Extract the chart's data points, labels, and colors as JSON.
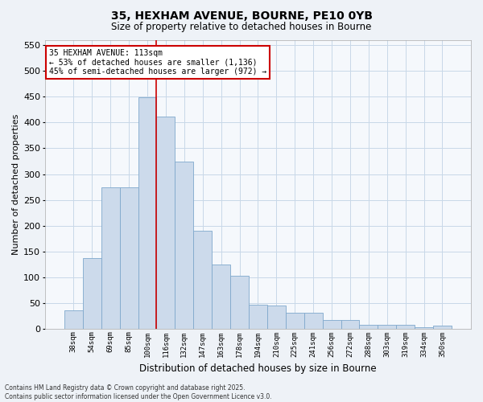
{
  "title_line1": "35, HEXHAM AVENUE, BOURNE, PE10 0YB",
  "title_line2": "Size of property relative to detached houses in Bourne",
  "xlabel": "Distribution of detached houses by size in Bourne",
  "ylabel": "Number of detached properties",
  "categories": [
    "38sqm",
    "54sqm",
    "69sqm",
    "85sqm",
    "100sqm",
    "116sqm",
    "132sqm",
    "147sqm",
    "163sqm",
    "178sqm",
    "194sqm",
    "210sqm",
    "225sqm",
    "241sqm",
    "256sqm",
    "272sqm",
    "288sqm",
    "303sqm",
    "319sqm",
    "334sqm",
    "350sqm"
  ],
  "values": [
    35,
    137,
    275,
    275,
    449,
    411,
    325,
    190,
    125,
    103,
    47,
    45,
    30,
    30,
    16,
    16,
    8,
    8,
    8,
    3,
    6
  ],
  "bar_color": "#ccdaeb",
  "bar_edge_color": "#7fa8cc",
  "grid_color": "#c8d8e8",
  "annotation_text_line1": "35 HEXHAM AVENUE: 113sqm",
  "annotation_text_line2": "← 53% of detached houses are smaller (1,136)",
  "annotation_text_line3": "45% of semi-detached houses are larger (972) →",
  "vline_color": "#cc0000",
  "vline_x_index": 5,
  "ylim": [
    0,
    560
  ],
  "yticks": [
    0,
    50,
    100,
    150,
    200,
    250,
    300,
    350,
    400,
    450,
    500,
    550
  ],
  "footer_line1": "Contains HM Land Registry data © Crown copyright and database right 2025.",
  "footer_line2": "Contains public sector information licensed under the Open Government Licence v3.0.",
  "background_color": "#eef2f7",
  "plot_bg_color": "#f5f8fc"
}
